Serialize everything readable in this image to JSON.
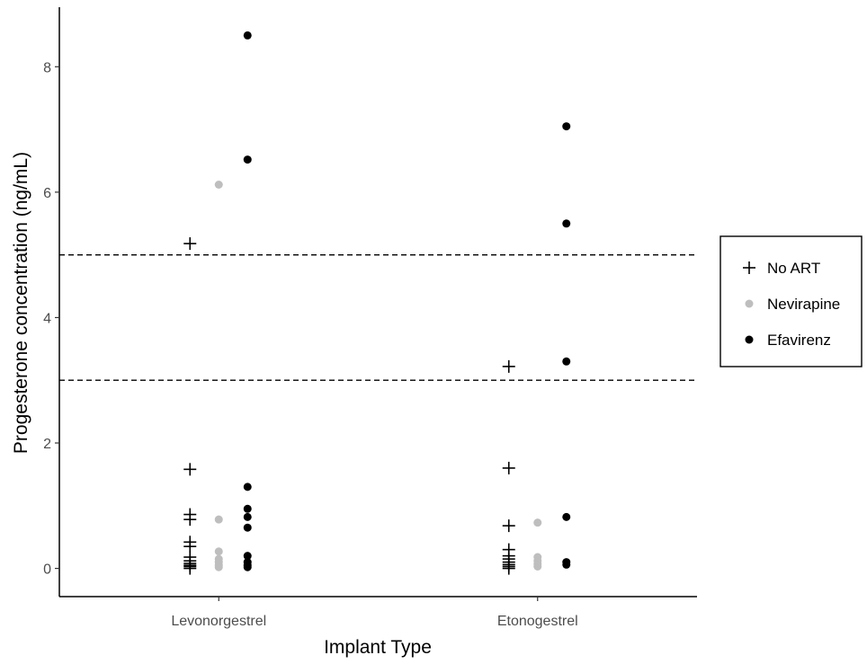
{
  "chart_data": {
    "type": "scatter",
    "title": "",
    "xlabel": "Implant Type",
    "ylabel": "Progesterone concentration (ng/mL)",
    "categories": [
      "Levonorgestrel",
      "Etonogestrel"
    ],
    "ylim": [
      -0.45,
      8.95
    ],
    "yticks": [
      0,
      2,
      4,
      6,
      8
    ],
    "reference_lines": [
      {
        "y": 5,
        "style": "dashed"
      },
      {
        "y": 3,
        "style": "dashed"
      }
    ],
    "grid": false,
    "legend_position": "right",
    "series": [
      {
        "name": "No ART",
        "marker": "plus",
        "color": "#000000",
        "points": [
          {
            "category": "Levonorgestrel",
            "values": [
              5.18,
              1.58,
              0.86,
              0.78,
              0.42,
              0.35,
              0.18,
              0.12,
              0.08,
              0.05,
              0.03,
              0.0
            ]
          },
          {
            "category": "Etonogestrel",
            "values": [
              3.22,
              1.6,
              0.68,
              0.3,
              0.2,
              0.15,
              0.1,
              0.06,
              0.03,
              0.0
            ]
          }
        ]
      },
      {
        "name": "Nevirapine",
        "marker": "circle",
        "color": "#bebebe",
        "points": [
          {
            "category": "Levonorgestrel",
            "values": [
              6.12,
              0.78,
              0.27,
              0.15,
              0.1,
              0.05,
              0.02
            ]
          },
          {
            "category": "Etonogestrel",
            "values": [
              0.73,
              0.18,
              0.12,
              0.07,
              0.03
            ]
          }
        ]
      },
      {
        "name": "Efavirenz",
        "marker": "circle",
        "color": "#000000",
        "points": [
          {
            "category": "Levonorgestrel",
            "values": [
              8.5,
              6.52,
              1.3,
              0.95,
              0.82,
              0.65,
              0.2,
              0.1,
              0.05,
              0.02
            ]
          },
          {
            "category": "Etonogestrel",
            "values": [
              7.05,
              5.5,
              3.3,
              0.82,
              0.1,
              0.06
            ]
          }
        ]
      }
    ]
  }
}
